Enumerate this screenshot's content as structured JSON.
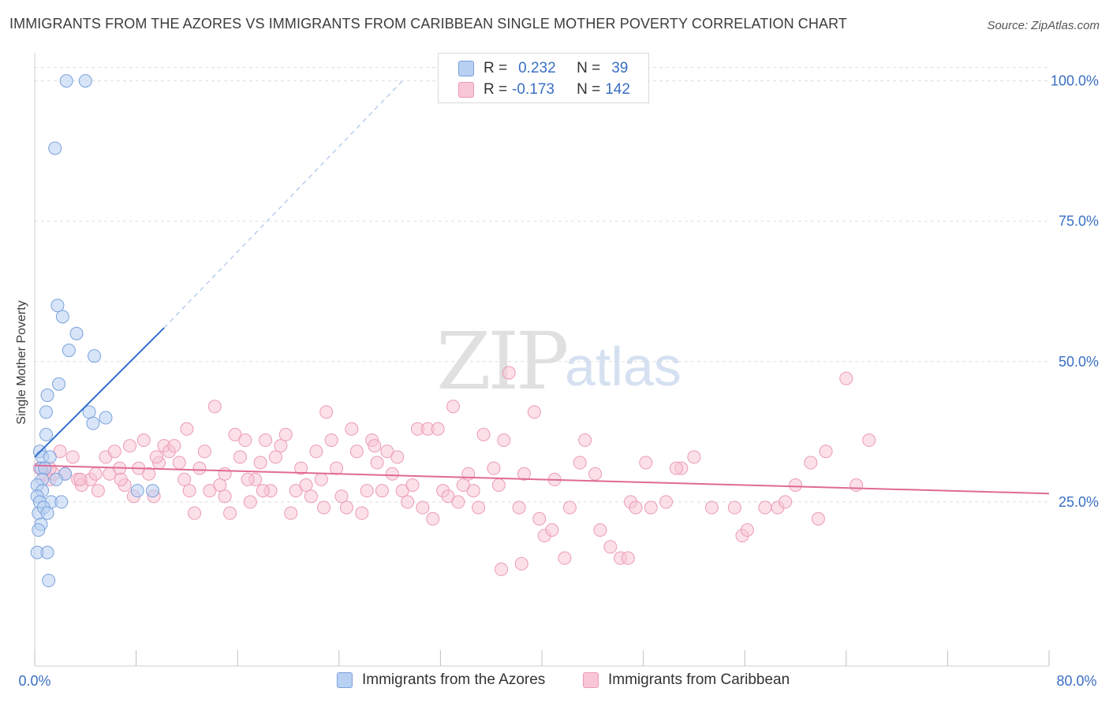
{
  "title": "IMMIGRANTS FROM THE AZORES VS IMMIGRANTS FROM CARIBBEAN SINGLE MOTHER POVERTY CORRELATION CHART",
  "source": "Source: ZipAtlas.com",
  "watermark": {
    "zip": "ZIP",
    "atlas": "atlas"
  },
  "stats": {
    "r_label": "R =",
    "n_label": "N =",
    "azores": {
      "r": "0.232",
      "n": "39"
    },
    "caribbean": {
      "r": "-0.173",
      "n": "142"
    }
  },
  "colors": {
    "azores_fill": "#b8d0f2",
    "azores_stroke": "#7aa2dc",
    "azores_line": "#2e6fcf",
    "caribbean_fill": "#f8c6d6",
    "caribbean_stroke": "#ec9ab5",
    "caribbean_line": "#e06a94",
    "tick_label": "#3a6fc4",
    "grid": "#dddddd"
  },
  "chart_data": {
    "type": "scatter",
    "title": "IMMIGRANTS FROM THE AZORES VS IMMIGRANTS FROM CARIBBEAN SINGLE MOTHER POVERTY CORRELATION CHART",
    "xlabel": "",
    "ylabel": "Single Mother Poverty",
    "xlim": [
      0,
      80
    ],
    "ylim": [
      0,
      105
    ],
    "x_tick_labels": [
      "0.0%",
      "80.0%"
    ],
    "y_ticks": [
      25,
      50,
      75,
      100
    ],
    "y_tick_labels": [
      "25.0%",
      "50.0%",
      "75.0%",
      "100.0%"
    ],
    "grid": true,
    "legend_position": "bottom",
    "series": [
      {
        "name": "Immigrants from the Azores",
        "points": [
          [
            2.5,
            100
          ],
          [
            4.0,
            100
          ],
          [
            1.6,
            88
          ],
          [
            1.8,
            60
          ],
          [
            2.2,
            58
          ],
          [
            3.3,
            55
          ],
          [
            2.7,
            52
          ],
          [
            4.7,
            51
          ],
          [
            1.9,
            46
          ],
          [
            1.0,
            44
          ],
          [
            0.9,
            41
          ],
          [
            4.3,
            41
          ],
          [
            4.6,
            39
          ],
          [
            5.6,
            40
          ],
          [
            0.9,
            37
          ],
          [
            0.4,
            34
          ],
          [
            0.6,
            33
          ],
          [
            1.2,
            33
          ],
          [
            0.5,
            31
          ],
          [
            0.8,
            31
          ],
          [
            2.4,
            30
          ],
          [
            0.6,
            29
          ],
          [
            1.7,
            29
          ],
          [
            0.2,
            28
          ],
          [
            0.6,
            27
          ],
          [
            8.1,
            27
          ],
          [
            9.3,
            27
          ],
          [
            0.2,
            26
          ],
          [
            0.4,
            25
          ],
          [
            1.3,
            25
          ],
          [
            2.1,
            25
          ],
          [
            0.3,
            23
          ],
          [
            0.7,
            24
          ],
          [
            1.0,
            23
          ],
          [
            0.5,
            21
          ],
          [
            0.3,
            20
          ],
          [
            0.2,
            16
          ],
          [
            1.0,
            16
          ],
          [
            1.1,
            11
          ]
        ],
        "trend": {
          "x": [
            0.0,
            10.2
          ],
          "y": [
            33.0,
            56.0
          ],
          "dashed_extension": {
            "x": [
              10.2,
              29.0
            ],
            "y": [
              56.0,
              100.0
            ]
          }
        }
      },
      {
        "name": "Immigrants from Caribbean",
        "points": [
          [
            0.4,
            31
          ],
          [
            0.8,
            30
          ],
          [
            1.2,
            29
          ],
          [
            1.5,
            30
          ],
          [
            2.4,
            30
          ],
          [
            3.0,
            33
          ],
          [
            3.4,
            29
          ],
          [
            3.7,
            28
          ],
          [
            4.4,
            29
          ],
          [
            4.8,
            30
          ],
          [
            5.0,
            27
          ],
          [
            5.6,
            33
          ],
          [
            5.9,
            30
          ],
          [
            6.3,
            34
          ],
          [
            6.7,
            31
          ],
          [
            7.1,
            28
          ],
          [
            7.5,
            35
          ],
          [
            7.8,
            26
          ],
          [
            8.2,
            31
          ],
          [
            8.6,
            36
          ],
          [
            9.0,
            30
          ],
          [
            9.4,
            26
          ],
          [
            9.8,
            32
          ],
          [
            10.2,
            35
          ],
          [
            10.6,
            34
          ],
          [
            11.0,
            35
          ],
          [
            11.4,
            32
          ],
          [
            11.8,
            29
          ],
          [
            12.2,
            27
          ],
          [
            12.6,
            23
          ],
          [
            13.0,
            31
          ],
          [
            13.4,
            34
          ],
          [
            13.8,
            27
          ],
          [
            14.2,
            42
          ],
          [
            14.6,
            28
          ],
          [
            15.0,
            30
          ],
          [
            15.4,
            23
          ],
          [
            15.8,
            37
          ],
          [
            16.2,
            33
          ],
          [
            16.6,
            36
          ],
          [
            17.0,
            25
          ],
          [
            17.4,
            29
          ],
          [
            17.8,
            32
          ],
          [
            18.2,
            36
          ],
          [
            18.6,
            27
          ],
          [
            19.0,
            33
          ],
          [
            19.4,
            35
          ],
          [
            19.8,
            37
          ],
          [
            20.2,
            23
          ],
          [
            20.6,
            27
          ],
          [
            21.0,
            31
          ],
          [
            21.4,
            28
          ],
          [
            21.8,
            26
          ],
          [
            22.2,
            34
          ],
          [
            22.6,
            29
          ],
          [
            23.0,
            41
          ],
          [
            23.4,
            36
          ],
          [
            23.8,
            31
          ],
          [
            24.2,
            26
          ],
          [
            24.6,
            24
          ],
          [
            25.0,
            38
          ],
          [
            25.4,
            34
          ],
          [
            25.8,
            23
          ],
          [
            26.2,
            27
          ],
          [
            26.6,
            36
          ],
          [
            27.0,
            32
          ],
          [
            27.4,
            27
          ],
          [
            27.8,
            34
          ],
          [
            28.2,
            30
          ],
          [
            28.6,
            33
          ],
          [
            29.0,
            27
          ],
          [
            29.4,
            25
          ],
          [
            29.8,
            28
          ],
          [
            30.2,
            38
          ],
          [
            30.6,
            24
          ],
          [
            31.0,
            38
          ],
          [
            31.4,
            22
          ],
          [
            31.8,
            38
          ],
          [
            32.2,
            27
          ],
          [
            32.6,
            26
          ],
          [
            33.0,
            42
          ],
          [
            33.4,
            25
          ],
          [
            34.2,
            30
          ],
          [
            34.6,
            27
          ],
          [
            35.0,
            24
          ],
          [
            35.4,
            37
          ],
          [
            36.2,
            31
          ],
          [
            36.6,
            28
          ],
          [
            37.0,
            36
          ],
          [
            37.4,
            48
          ],
          [
            38.2,
            24
          ],
          [
            38.6,
            30
          ],
          [
            39.4,
            41
          ],
          [
            39.8,
            22
          ],
          [
            40.2,
            19
          ],
          [
            41.0,
            29
          ],
          [
            41.8,
            15
          ],
          [
            42.2,
            24
          ],
          [
            43.0,
            32
          ],
          [
            43.4,
            36
          ],
          [
            44.2,
            30
          ],
          [
            44.6,
            20
          ],
          [
            45.4,
            17
          ],
          [
            46.2,
            15
          ],
          [
            47.0,
            25
          ],
          [
            47.4,
            24
          ],
          [
            48.2,
            32
          ],
          [
            48.6,
            24
          ],
          [
            49.8,
            25
          ],
          [
            55.2,
            24
          ],
          [
            55.8,
            19
          ],
          [
            56.2,
            20
          ],
          [
            58.6,
            24
          ],
          [
            60.0,
            28
          ],
          [
            61.2,
            32
          ],
          [
            61.8,
            22
          ],
          [
            62.4,
            34
          ],
          [
            64.0,
            47
          ],
          [
            64.8,
            28
          ],
          [
            65.8,
            36
          ],
          [
            52.0,
            33
          ],
          [
            51.0,
            31
          ],
          [
            2.0,
            34
          ],
          [
            6.8,
            29
          ],
          [
            12.0,
            38
          ],
          [
            15.0,
            26
          ],
          [
            18.0,
            27
          ],
          [
            22.8,
            24
          ],
          [
            26.8,
            35
          ],
          [
            33.8,
            28
          ],
          [
            36.8,
            13
          ],
          [
            38.4,
            14
          ],
          [
            40.8,
            20
          ],
          [
            46.8,
            15
          ],
          [
            50.6,
            31
          ],
          [
            53.4,
            24
          ],
          [
            57.6,
            24
          ],
          [
            59.2,
            25
          ],
          [
            1.2,
            31
          ],
          [
            3.6,
            29
          ],
          [
            9.6,
            33
          ],
          [
            16.8,
            29
          ]
        ],
        "trend": {
          "x": [
            0.0,
            80.0
          ],
          "y": [
            31.5,
            26.5
          ]
        }
      }
    ]
  }
}
